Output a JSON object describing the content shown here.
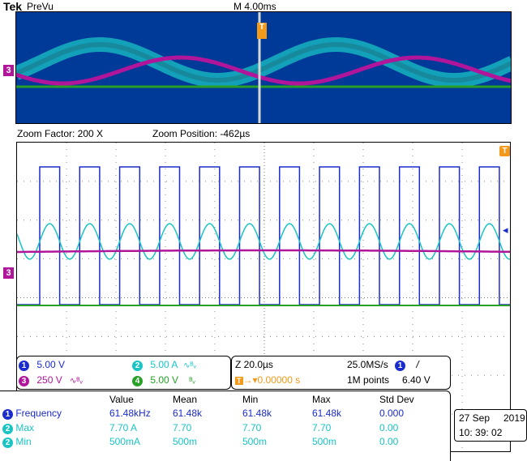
{
  "header": {
    "brand": "Tek",
    "mode": "PreVu",
    "timebase": "M 4.00ms"
  },
  "zoom_bar": {
    "factor": "Zoom Factor: 200 X",
    "position": "Zoom Position: -462µs"
  },
  "markers": {
    "trigger": "T",
    "ch3_ground": "3"
  },
  "channels": {
    "ch1": {
      "num": "1",
      "scale": "5.00 V",
      "color": "#1a2ccc"
    },
    "ch2": {
      "num": "2",
      "scale": "5.00 A",
      "coupling": "∿ᴮᵥ",
      "color": "#19c4c4"
    },
    "ch3": {
      "num": "3",
      "scale": "250 V",
      "coupling": "∿ᴮᵥ",
      "color": "#b0159a"
    },
    "ch4": {
      "num": "4",
      "scale": "5.00 V",
      "coupling": "ᴮᵥ",
      "color": "#28a028"
    }
  },
  "horizontal": {
    "zoom_scale": "Z 20.0µs",
    "trigger_pos": "0.00000 s",
    "sample_rate": "25.0MS/s",
    "record_length": "1M points"
  },
  "trigger": {
    "source": "1",
    "slope": "/",
    "level": "6.40 V"
  },
  "measurements": {
    "headers": [
      "Value",
      "Mean",
      "Min",
      "Max",
      "Std Dev"
    ],
    "rows": [
      {
        "ch": "1",
        "name": "Frequency",
        "value": "61.48kHz",
        "mean": "61.48k",
        "min": "61.48k",
        "max": "61.48k",
        "std": "0.000",
        "color": "#1a2ccc"
      },
      {
        "ch": "2",
        "name": "Max",
        "value": "7.70 A",
        "mean": "7.70",
        "min": "7.70",
        "max": "7.70",
        "std": "0.00",
        "color": "#19c4c4"
      },
      {
        "ch": "2",
        "name": "Min",
        "value": "500mA",
        "mean": "500m",
        "min": "500m",
        "max": "500m",
        "std": "0.00",
        "color": "#19c4c4"
      }
    ]
  },
  "datetime": {
    "date": "27 Sep",
    "year": "2019",
    "time": "10: 39: 02"
  }
}
